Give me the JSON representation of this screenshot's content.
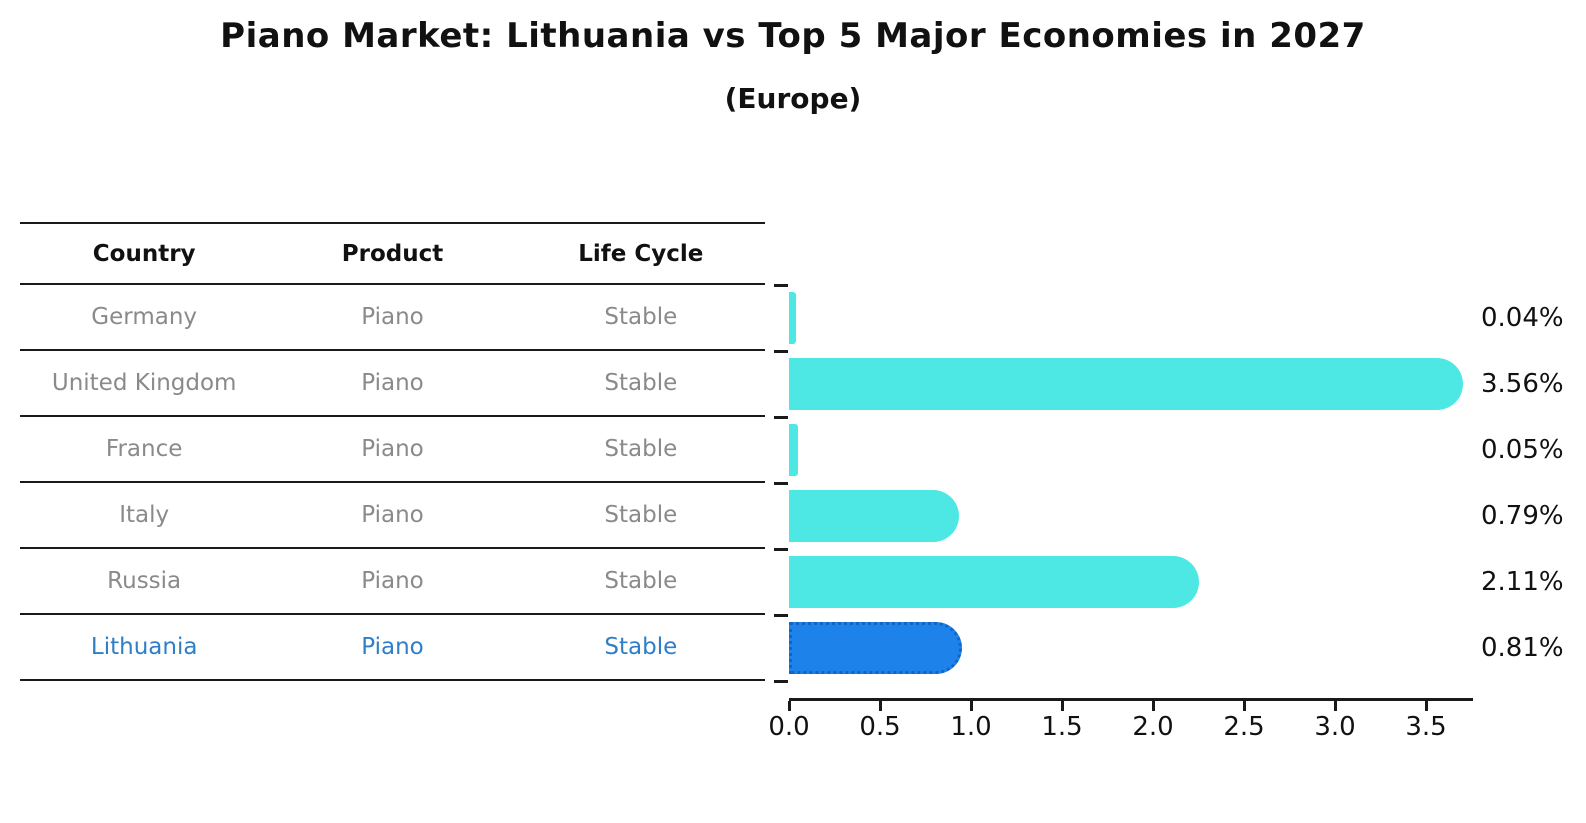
{
  "title": "Piano Market: Lithuania vs Top 5 Major Economies in 2027",
  "subtitle": "(Europe)",
  "table": {
    "headers": [
      "Country",
      "Product",
      "Life Cycle"
    ],
    "rows": [
      {
        "country": "Germany",
        "product": "Piano",
        "life_cycle": "Stable",
        "highlighted": false
      },
      {
        "country": "United Kingdom",
        "product": "Piano",
        "life_cycle": "Stable",
        "highlighted": false
      },
      {
        "country": "France",
        "product": "Piano",
        "life_cycle": "Stable",
        "highlighted": false
      },
      {
        "country": "Italy",
        "product": "Piano",
        "life_cycle": "Stable",
        "highlighted": false
      },
      {
        "country": "Russia",
        "product": "Piano",
        "life_cycle": "Stable",
        "highlighted": false
      },
      {
        "country": "Lithuania",
        "product": "Piano",
        "life_cycle": "Stable",
        "highlighted": true
      }
    ]
  },
  "chart_data": {
    "type": "bar",
    "orientation": "horizontal",
    "title": "Piano Market: Lithuania vs Top 5 Major Economies in 2027",
    "subtitle": "(Europe)",
    "categories": [
      "Germany",
      "United Kingdom",
      "France",
      "Italy",
      "Russia",
      "Lithuania"
    ],
    "values": [
      0.04,
      3.56,
      0.05,
      0.79,
      2.11,
      0.81
    ],
    "value_labels": [
      "0.04%",
      "3.56%",
      "0.05%",
      "0.79%",
      "2.11%",
      "0.81%"
    ],
    "xticks": [
      0.0,
      0.5,
      1.0,
      1.5,
      2.0,
      2.5,
      3.0,
      3.5
    ],
    "xtick_labels": [
      "0.0",
      "0.5",
      "1.0",
      "1.5",
      "2.0",
      "2.5",
      "3.0",
      "3.5"
    ],
    "xlim": [
      0,
      3.75
    ],
    "grid": false,
    "legend": "none",
    "highlight_index": 5
  },
  "colors": {
    "bar_fill": "#4DE8E4",
    "highlight_fill": "#1E82EB",
    "highlight_border": "#1365C4",
    "highlight_text": "#2E7EC8",
    "row_text": "#8a8a8a",
    "axis": "#1a1a1a",
    "background": "#ffffff"
  }
}
